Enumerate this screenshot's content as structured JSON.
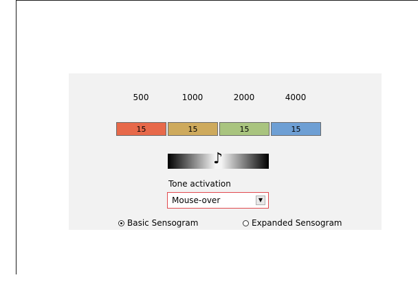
{
  "frequencies": [
    "500",
    "1000",
    "2000",
    "4000"
  ],
  "bands": [
    {
      "value": "15",
      "color": "#e7694a"
    },
    {
      "value": "15",
      "color": "#ceaa5d"
    },
    {
      "value": "15",
      "color": "#a9c47f"
    },
    {
      "value": "15",
      "color": "#6e9fd4"
    }
  ],
  "tone": {
    "icon": "music-note-icon",
    "note_glyph": "♪",
    "label": "Tone activation",
    "selected": "Mouse-over",
    "arrow_glyph": "▼"
  },
  "sensogram": {
    "options": [
      {
        "label": "Basic Sensogram",
        "checked": true
      },
      {
        "label": "Expanded Sensogram",
        "checked": false
      }
    ]
  }
}
